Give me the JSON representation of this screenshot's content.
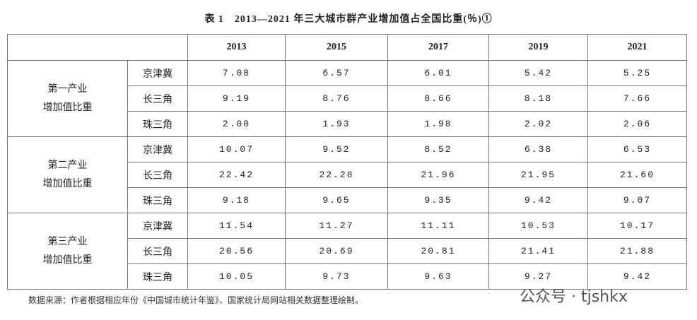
{
  "title": "表 1　2013—2021 年三大城市群产业增加值占全国比重(％)①",
  "table": {
    "header": [
      "2013",
      "2015",
      "2017",
      "2019",
      "2021"
    ],
    "groups": [
      {
        "label": [
          "第一产业",
          "增加值比重"
        ],
        "rows": [
          {
            "region": "京津冀",
            "values": [
              "7.08",
              "6.57",
              "6.01",
              "5.42",
              "5.25"
            ]
          },
          {
            "region": "长三角",
            "values": [
              "9.19",
              "8.76",
              "8.66",
              "8.18",
              "7.66"
            ]
          },
          {
            "region": "珠三角",
            "values": [
              "2.00",
              "1.93",
              "1.98",
              "2.02",
              "2.06"
            ]
          }
        ]
      },
      {
        "label": [
          "第二产业",
          "增加值比重"
        ],
        "rows": [
          {
            "region": "京津冀",
            "values": [
              "10.07",
              "9.52",
              "8.52",
              "6.38",
              "6.53"
            ]
          },
          {
            "region": "长三角",
            "values": [
              "22.42",
              "22.28",
              "21.96",
              "21.95",
              "21.60"
            ]
          },
          {
            "region": "珠三角",
            "values": [
              "9.18",
              "9.65",
              "9.35",
              "9.42",
              "9.07"
            ]
          }
        ]
      },
      {
        "label": [
          "第三产业",
          "增加值比重"
        ],
        "rows": [
          {
            "region": "京津冀",
            "values": [
              "11.54",
              "11.27",
              "11.11",
              "10.53",
              "10.17"
            ]
          },
          {
            "region": "长三角",
            "values": [
              "20.56",
              "20.69",
              "20.81",
              "21.41",
              "21.88"
            ]
          },
          {
            "region": "珠三角",
            "values": [
              "10.05",
              "9.73",
              "9.63",
              "9.27",
              "9.42"
            ]
          }
        ]
      }
    ]
  },
  "source": "数据来源：作者根据相应年份《中国城市统计年鉴》、国家统计局网站相关数据整理绘制。",
  "watermark": "公众号 · tjshkx"
}
